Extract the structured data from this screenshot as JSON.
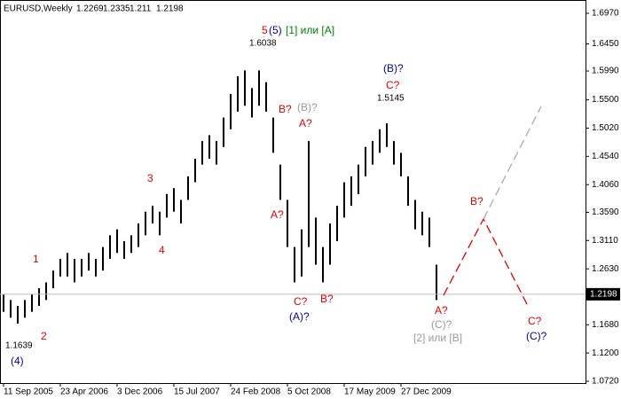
{
  "chart_data": {
    "type": "ohlc",
    "symbol": "EURUSD,Weekly",
    "ohlc": [
      1.2269,
      1.2335,
      1.211,
      1.2198
    ],
    "bar_color": "#000000",
    "ylim": [
      1.069,
      1.7045
    ],
    "yticks": [
      {
        "value": 1.697,
        "label": "1.6970"
      },
      {
        "value": 1.645,
        "label": "1.6450"
      },
      {
        "value": 1.599,
        "label": "1.5990"
      },
      {
        "value": 1.55,
        "label": "1.5500"
      },
      {
        "value": 1.502,
        "label": "1.5020"
      },
      {
        "value": 1.454,
        "label": "1.4540"
      },
      {
        "value": 1.406,
        "label": "1.4060"
      },
      {
        "value": 1.359,
        "label": "1.3590"
      },
      {
        "value": 1.311,
        "label": "1.3110"
      },
      {
        "value": 1.263,
        "label": "1.2630"
      },
      {
        "value": 1.168,
        "label": "1.1680"
      },
      {
        "value": 1.12,
        "label": "1.1200"
      },
      {
        "value": 1.072,
        "label": "1.0720"
      }
    ],
    "categories": [
      "11 Sep 2005",
      null,
      null,
      null,
      null,
      null,
      null,
      null,
      "23 Apr 2006",
      null,
      null,
      null,
      null,
      null,
      null,
      null,
      "3 Dec 2006",
      null,
      null,
      null,
      null,
      null,
      null,
      null,
      "15 Jul 2007",
      null,
      null,
      null,
      null,
      null,
      null,
      null,
      "24 Feb 2008",
      null,
      null,
      null,
      null,
      null,
      null,
      null,
      "5 Oct 2008",
      null,
      null,
      null,
      null,
      null,
      null,
      null,
      "17 May 2009",
      null,
      null,
      null,
      null,
      null,
      null,
      null,
      "27 Dec 2009",
      null,
      null,
      null,
      null,
      null
    ],
    "high": [
      1.22,
      1.21,
      1.2,
      1.21,
      1.22,
      1.23,
      1.24,
      1.26,
      1.28,
      1.29,
      1.28,
      1.28,
      1.29,
      1.28,
      1.3,
      1.32,
      1.33,
      1.31,
      1.32,
      1.34,
      1.36,
      1.37,
      1.36,
      1.39,
      1.4,
      1.38,
      1.42,
      1.45,
      1.48,
      1.49,
      1.48,
      1.52,
      1.56,
      1.59,
      1.6,
      1.57,
      1.6,
      1.58,
      1.52,
      1.44,
      1.38,
      1.3,
      1.33,
      1.48,
      1.35,
      1.3,
      1.34,
      1.37,
      1.41,
      1.42,
      1.44,
      1.47,
      1.48,
      1.5,
      1.51,
      1.48,
      1.46,
      1.42,
      1.38,
      1.36,
      1.35,
      1.27
    ],
    "low": [
      1.19,
      1.18,
      1.17,
      1.18,
      1.19,
      1.2,
      1.21,
      1.23,
      1.25,
      1.25,
      1.24,
      1.25,
      1.26,
      1.25,
      1.26,
      1.28,
      1.29,
      1.28,
      1.29,
      1.3,
      1.32,
      1.34,
      1.32,
      1.35,
      1.36,
      1.34,
      1.38,
      1.41,
      1.44,
      1.45,
      1.44,
      1.47,
      1.5,
      1.53,
      1.54,
      1.52,
      1.54,
      1.53,
      1.46,
      1.38,
      1.3,
      1.24,
      1.25,
      1.3,
      1.27,
      1.24,
      1.27,
      1.31,
      1.35,
      1.37,
      1.39,
      1.42,
      1.44,
      1.46,
      1.47,
      1.44,
      1.42,
      1.37,
      1.33,
      1.32,
      1.3,
      1.21
    ],
    "annotations": [
      {
        "text": "5",
        "color": "#e00000"
      },
      {
        "text": "(5)",
        "color": "#0000a0"
      },
      {
        "text": "[1] или [A]",
        "color": "#008000"
      },
      {
        "text": "1.6038",
        "color": "#000000"
      },
      {
        "text": "1",
        "color": "#e00000"
      },
      {
        "text": "2",
        "color": "#e00000"
      },
      {
        "text": "3",
        "color": "#e00000"
      },
      {
        "text": "4",
        "color": "#e00000"
      },
      {
        "text": "1.1639",
        "color": "#000000"
      },
      {
        "text": "(4)",
        "color": "#0000a0"
      },
      {
        "text": "B?",
        "color": "#e00000"
      },
      {
        "text": "(B)?",
        "color": "#999999"
      },
      {
        "text": "A?",
        "color": "#e00000"
      },
      {
        "text": "A?",
        "color": "#e00000"
      },
      {
        "text": "C?",
        "color": "#e00000"
      },
      {
        "text": "(A)?",
        "color": "#0000a0"
      },
      {
        "text": "B?",
        "color": "#e00000"
      },
      {
        "text": "(B)?",
        "color": "#0000a0"
      },
      {
        "text": "C?",
        "color": "#e00000"
      },
      {
        "text": "1.5145",
        "color": "#000000"
      },
      {
        "text": "A?",
        "color": "#e00000"
      },
      {
        "text": "(C)?",
        "color": "#999999"
      },
      {
        "text": "[2] или [B]",
        "color": "#999999"
      },
      {
        "text": "B?",
        "color": "#e00000"
      },
      {
        "text": "C?",
        "color": "#e00000"
      },
      {
        "text": "(C)?",
        "color": "#0000a0"
      }
    ]
  }
}
